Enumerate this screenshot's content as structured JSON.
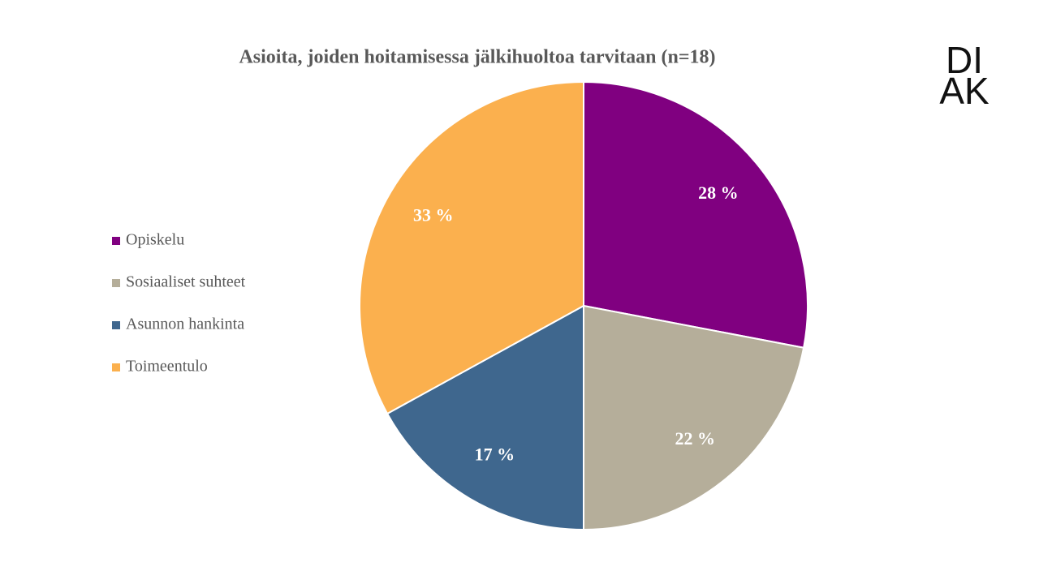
{
  "chart_data": {
    "type": "pie",
    "title": "Asioita, joiden hoitamisessa jälkihuoltoa tarvitaan (n=18)",
    "categories": [
      "Opiskelu",
      "Sosiaaliset suhteet",
      "Asunnon hankinta",
      "Toimeentulo"
    ],
    "values": [
      28,
      22,
      17,
      33
    ],
    "value_labels": [
      "28 %",
      "22 %",
      "17 %",
      "33 %"
    ],
    "colors": [
      "#800080",
      "#b5ae9a",
      "#3f678e",
      "#fbb04e"
    ],
    "legend": "left"
  },
  "logo": [
    "DI",
    "AK"
  ]
}
